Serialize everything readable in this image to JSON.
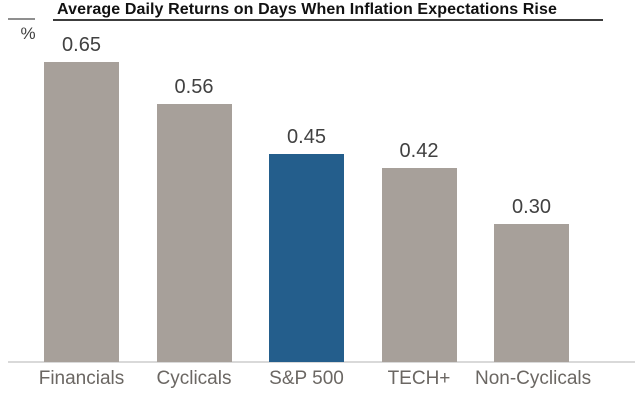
{
  "chart": {
    "title": "Average Daily Returns on Days When Inflation Expectations Rise",
    "unit_label": "%",
    "colors": {
      "bar_default": "#a7a09a",
      "bar_highlight": "#245e8c",
      "title_text": "#111111",
      "value_text": "#414141",
      "category_text": "#6b6763",
      "axis_line": "#d9d9d9"
    }
  },
  "chart_data": {
    "type": "bar",
    "title": "Average Daily Returns on Days When Inflation Expectations Rise",
    "categories": [
      "Financials",
      "Cyclicals",
      "S&P 500",
      "TECH+",
      "Non-Cyclicals"
    ],
    "values": [
      0.65,
      0.56,
      0.45,
      0.42,
      0.3
    ],
    "value_labels": [
      "0.65",
      "0.56",
      "0.45",
      "0.42",
      "0.30"
    ],
    "highlight_index": 2,
    "highlighted_category": "S&P 500",
    "xlabel": "",
    "ylabel": "%",
    "ylim": [
      0,
      0.7
    ],
    "grid": false,
    "legend": false
  }
}
